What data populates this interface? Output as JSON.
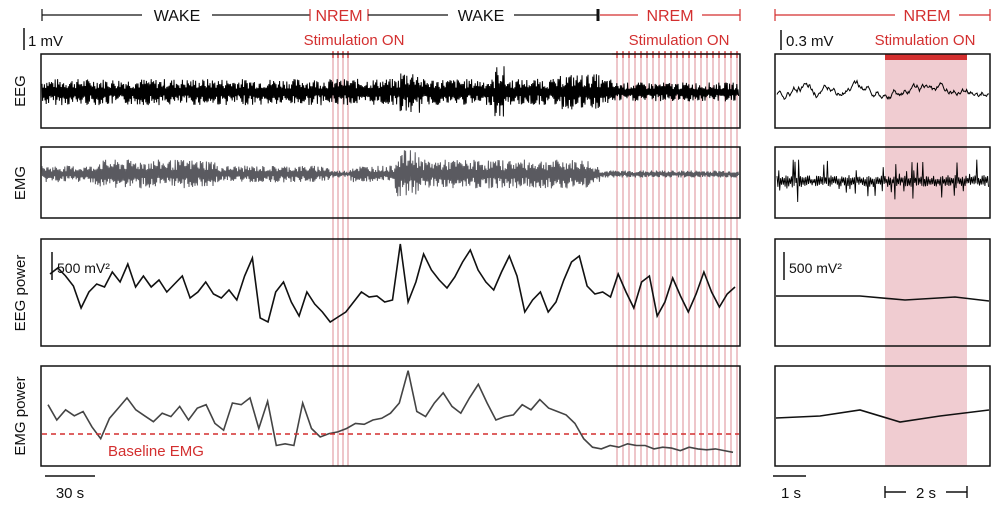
{
  "colors": {
    "red": "#d32f2f",
    "stim_shade": "#e9b7bd",
    "signal_dark": "#000000",
    "signal_gray": "#5a5a60"
  },
  "left": {
    "states": [
      "WAKE",
      "NREM",
      "WAKE",
      "NREM"
    ],
    "stim_label": "Stimulation ON",
    "scale_eeg": "1 mV",
    "scale_power": "500 mV²",
    "time_scale": "30 s",
    "baseline_label": "Baseline EMG",
    "row_labels": [
      "EEG",
      "EMG",
      "EEG power",
      "EMG power"
    ]
  },
  "right": {
    "state": "NREM",
    "stim_label": "Stimulation ON",
    "scale_eeg": "0.3 mV",
    "scale_power": "500 mV²",
    "time_scale": "1 s",
    "stim_duration": "2 s"
  },
  "traces": {
    "eeg_power": [
      0.68,
      0.74,
      0.66,
      0.56,
      0.34,
      0.5,
      0.58,
      0.55,
      0.7,
      0.6,
      0.78,
      0.55,
      0.66,
      0.55,
      0.62,
      0.5,
      0.58,
      0.66,
      0.44,
      0.5,
      0.6,
      0.48,
      0.44,
      0.52,
      0.42,
      0.66,
      0.84,
      0.24,
      0.2,
      0.5,
      0.6,
      0.4,
      0.26,
      0.5,
      0.38,
      0.3,
      0.2,
      0.25,
      0.3,
      0.4,
      0.5,
      0.45,
      0.46,
      0.4,
      0.42,
      0.98,
      0.4,
      0.6,
      0.88,
      0.72,
      0.62,
      0.54,
      0.65,
      0.8,
      0.92,
      0.72,
      0.6,
      0.52,
      0.7,
      0.86,
      0.66,
      0.3,
      0.42,
      0.5,
      0.3,
      0.4,
      0.62,
      0.8,
      0.86,
      0.56,
      0.48,
      0.5,
      0.45,
      0.68,
      0.5,
      0.34,
      0.6,
      0.66,
      0.26,
      0.4,
      0.64,
      0.46,
      0.3,
      0.48,
      0.7,
      0.5,
      0.35,
      0.48,
      0.55
    ],
    "emg_power": [
      0.58,
      0.4,
      0.52,
      0.45,
      0.5,
      0.32,
      0.18,
      0.42,
      0.54,
      0.66,
      0.52,
      0.45,
      0.38,
      0.48,
      0.44,
      0.56,
      0.4,
      0.54,
      0.58,
      0.36,
      0.28,
      0.6,
      0.58,
      0.66,
      0.3,
      0.62,
      0.1,
      0.12,
      0.1,
      0.6,
      0.3,
      0.2,
      0.24,
      0.26,
      0.3,
      0.36,
      0.35,
      0.4,
      0.42,
      0.48,
      0.6,
      0.98,
      0.5,
      0.44,
      0.6,
      0.72,
      0.56,
      0.48,
      0.66,
      0.82,
      0.6,
      0.4,
      0.44,
      0.46,
      0.58,
      0.52,
      0.64,
      0.54,
      0.5,
      0.46,
      0.36,
      0.18,
      0.08,
      0.06,
      0.1,
      0.08,
      0.12,
      0.1,
      0.1,
      0.06,
      0.08,
      0.07,
      0.04,
      0.08,
      0.06,
      0.05,
      0.06,
      0.04,
      0.02
    ]
  }
}
